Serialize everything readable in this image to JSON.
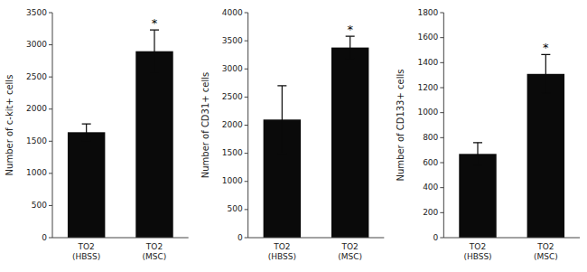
{
  "chart_data": [
    {
      "type": "bar",
      "ylabel": "Number of c-kit+ cells",
      "categories": [
        "TO2\n(HBSS)",
        "TO2\n(MSC)"
      ],
      "values": [
        1640,
        2900
      ],
      "errors": [
        130,
        330
      ],
      "color": "#0a0a0a",
      "ylim": [
        0,
        3500
      ],
      "yticks": [
        0,
        500,
        1000,
        1500,
        2000,
        2500,
        3000,
        3500
      ],
      "grid": false,
      "annotations": [
        {
          "text": "*",
          "index": 1
        }
      ]
    },
    {
      "type": "bar",
      "ylabel": "Number of CD31+ cells",
      "categories": [
        "TO2\n(HBSS)",
        "TO2\n(MSC)"
      ],
      "values": [
        2100,
        3380
      ],
      "errors": [
        600,
        200
      ],
      "color": "#0a0a0a",
      "ylim": [
        0,
        4000
      ],
      "yticks": [
        0,
        500,
        1000,
        1500,
        2000,
        2500,
        3000,
        3500,
        4000
      ],
      "grid": false,
      "annotations": [
        {
          "text": "*",
          "index": 1
        }
      ]
    },
    {
      "type": "bar",
      "ylabel": "Number of CD133+ cells",
      "categories": [
        "TO2\n(HBSS)",
        "TO2\n(MSC)"
      ],
      "values": [
        670,
        1310
      ],
      "errors": [
        90,
        155
      ],
      "color": "#0a0a0a",
      "ylim": [
        0,
        1800
      ],
      "yticks": [
        0,
        200,
        400,
        600,
        800,
        1000,
        1200,
        1400,
        1600,
        1800
      ],
      "grid": false,
      "annotations": [
        {
          "text": "*",
          "index": 1
        }
      ]
    }
  ]
}
